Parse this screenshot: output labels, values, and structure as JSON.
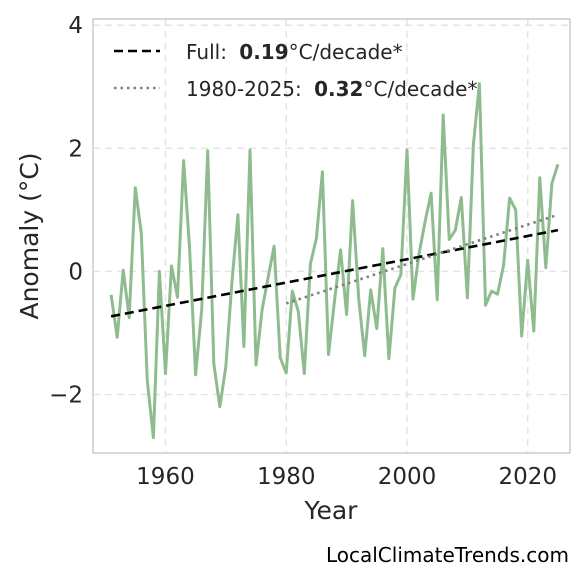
{
  "chart_data": {
    "type": "line",
    "xlabel": "Year",
    "ylabel": "Anomaly (°C)",
    "xlim": [
      1948,
      2027
    ],
    "ylim": [
      -2.95,
      4.1
    ],
    "xticks": [
      1960,
      1980,
      2000,
      2020
    ],
    "yticks": [
      -2,
      0,
      2,
      4
    ],
    "ytick_labels": [
      "−2",
      "0",
      "2",
      "4"
    ],
    "grid": true,
    "legend_position": "top-left",
    "series": [
      {
        "line_color": "#8fbc8f",
        "x": [
          1951,
          1952,
          1953,
          1954,
          1955,
          1956,
          1957,
          1958,
          1959,
          1960,
          1961,
          1962,
          1963,
          1964,
          1965,
          1966,
          1967,
          1968,
          1969,
          1970,
          1971,
          1972,
          1973,
          1974,
          1975,
          1976,
          1977,
          1978,
          1979,
          1980,
          1981,
          1982,
          1983,
          1984,
          1985,
          1986,
          1987,
          1988,
          1989,
          1990,
          1991,
          1992,
          1993,
          1994,
          1995,
          1996,
          1997,
          1998,
          1999,
          2000,
          2001,
          2002,
          2003,
          2004,
          2005,
          2006,
          2007,
          2008,
          2009,
          2010,
          2011,
          2012,
          2013,
          2014,
          2015,
          2016,
          2017,
          2018,
          2019,
          2020,
          2021,
          2022,
          2023,
          2024,
          2025
        ],
        "y": [
          -0.38,
          -1.07,
          0.02,
          -0.75,
          1.36,
          0.62,
          -1.78,
          -2.7,
          0.0,
          -1.66,
          0.09,
          -0.42,
          1.8,
          0.37,
          -1.68,
          -0.62,
          1.96,
          -1.5,
          -2.2,
          -1.55,
          -0.18,
          0.92,
          -1.22,
          1.97,
          -1.52,
          -0.62,
          -0.1,
          0.41,
          -1.4,
          -1.65,
          -0.32,
          -0.65,
          -1.66,
          0.12,
          0.54,
          1.62,
          -1.35,
          -0.48,
          0.35,
          -0.7,
          1.15,
          -0.44,
          -1.37,
          -0.3,
          -0.93,
          0.37,
          -1.42,
          -0.27,
          -0.05,
          1.97,
          -0.45,
          0.29,
          0.81,
          1.27,
          -0.46,
          2.54,
          0.52,
          0.67,
          1.2,
          -0.43,
          2.06,
          3.05,
          -0.55,
          -0.32,
          -0.37,
          0.1,
          1.19,
          1.0,
          -1.05,
          0.18,
          -0.97,
          1.52,
          0.06,
          1.43,
          1.74
        ]
      }
    ],
    "trends": [
      {
        "legend_label": "Full:",
        "legend_value": "0.19",
        "legend_unit": "°C/decade*",
        "style": "dashed",
        "line_color": "#000000",
        "x": [
          1951,
          2025
        ],
        "y": [
          -0.73,
          0.67
        ]
      },
      {
        "legend_label": "1980-2025:",
        "legend_value": "0.32",
        "legend_unit": "°C/decade*",
        "style": "dotted",
        "line_color": "#808080",
        "x": [
          1980,
          2025
        ],
        "y": [
          -0.52,
          0.92
        ]
      }
    ]
  },
  "watermark": "LocalClimateTrends.com"
}
